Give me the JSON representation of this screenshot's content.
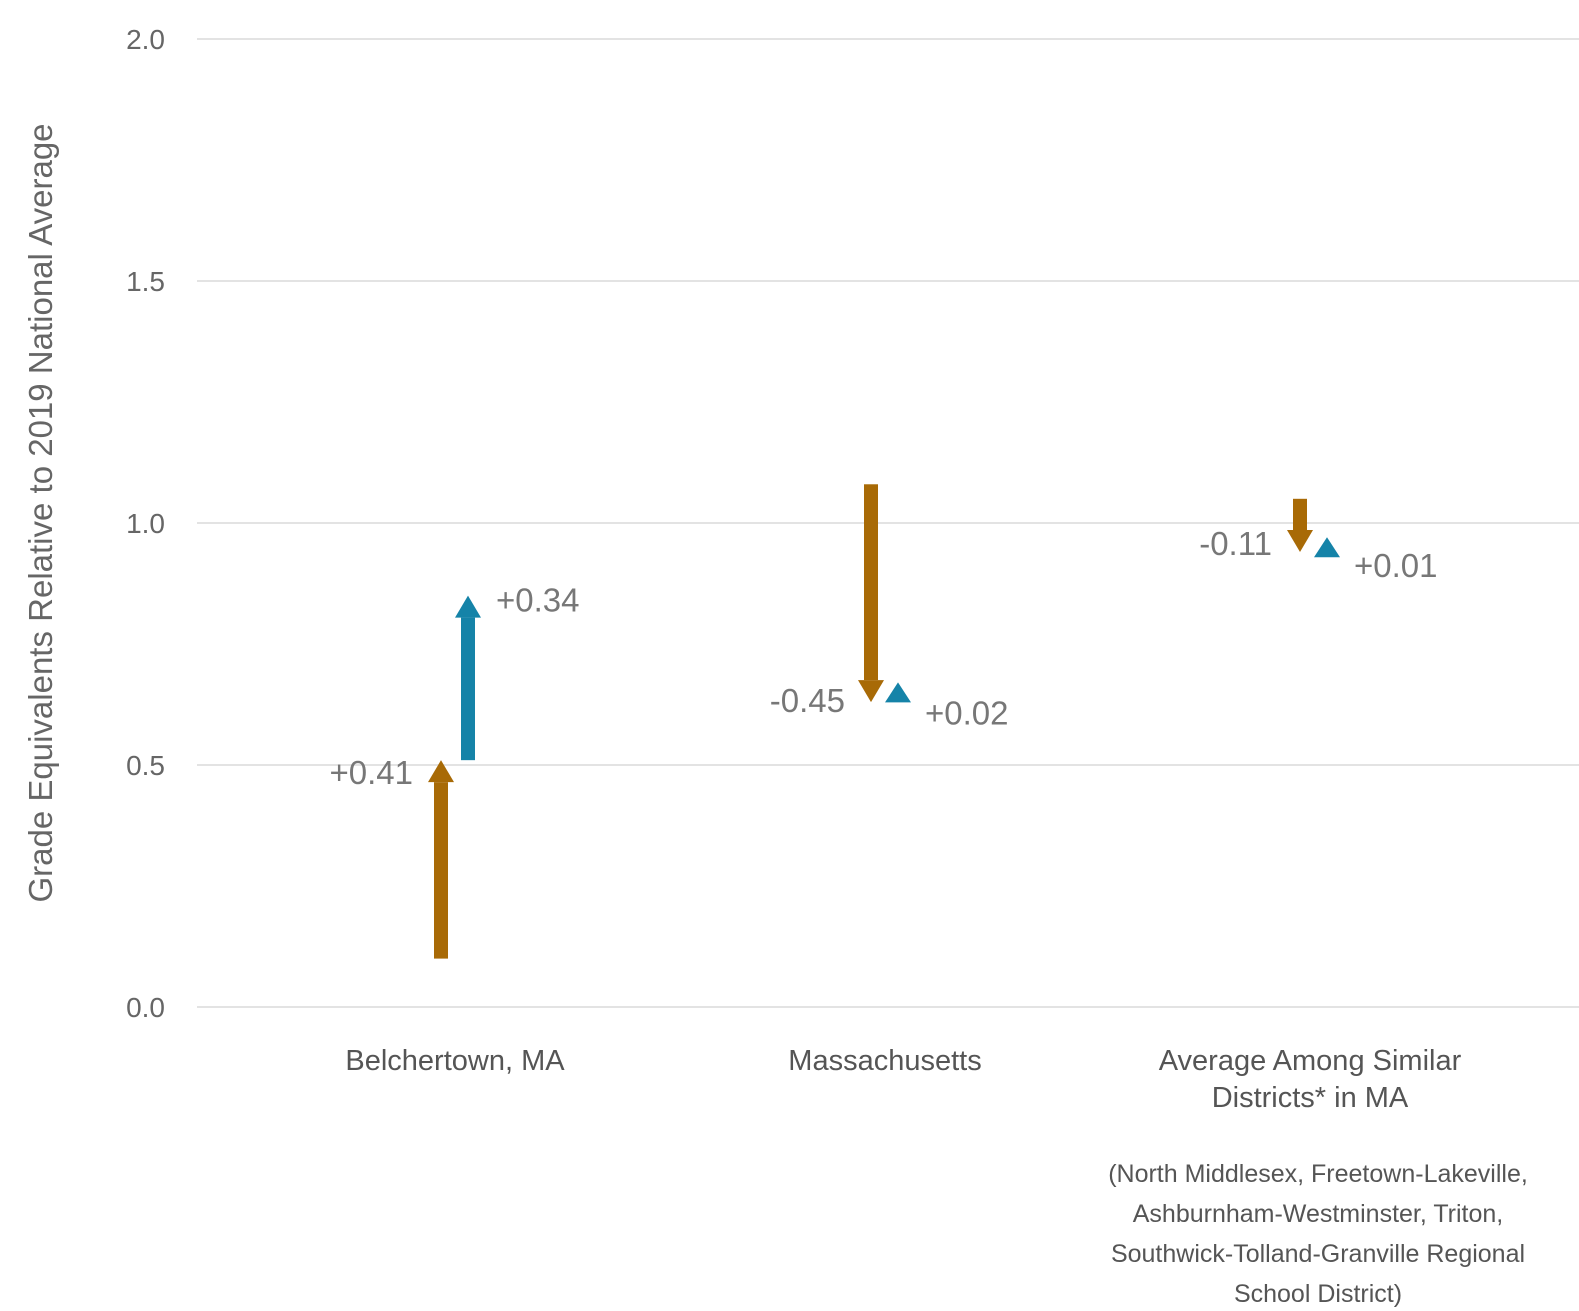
{
  "chart_data": {
    "type": "arrow",
    "ylabel": "Grade Equivalents Relative to 2019 National Average",
    "ylim": [
      0,
      2
    ],
    "yticks": [
      "0.0",
      "0.5",
      "1.0",
      "1.5",
      "2.0"
    ],
    "grid": true,
    "colors": {
      "decline": "#A86A06",
      "recovery": "#1583A8"
    },
    "categories": [
      {
        "name": "Belchertown, MA",
        "subtitle": "",
        "arrows": [
          {
            "type": "decline",
            "start": 0.1,
            "end": 0.51,
            "label": "+0.41"
          },
          {
            "type": "recovery",
            "start": 0.51,
            "end": 0.85,
            "label": "+0.34"
          }
        ]
      },
      {
        "name": "Massachusetts",
        "subtitle": "",
        "arrows": [
          {
            "type": "decline",
            "start": 1.08,
            "end": 0.63,
            "label": "-0.45"
          },
          {
            "type": "recovery",
            "start": 0.63,
            "end": 0.65,
            "label": "+0.02"
          }
        ]
      },
      {
        "name": "Average Among Similar Districts* in MA",
        "subtitle": "(North Middlesex, Freetown-Lakeville, Ashburnham-Westminster, Triton, Southwick-Tolland-Granville Regional School District)",
        "arrows": [
          {
            "type": "decline",
            "start": 1.05,
            "end": 0.94,
            "label": "-0.11"
          },
          {
            "type": "recovery",
            "start": 0.94,
            "end": 0.95,
            "label": "+0.01"
          }
        ]
      }
    ]
  }
}
